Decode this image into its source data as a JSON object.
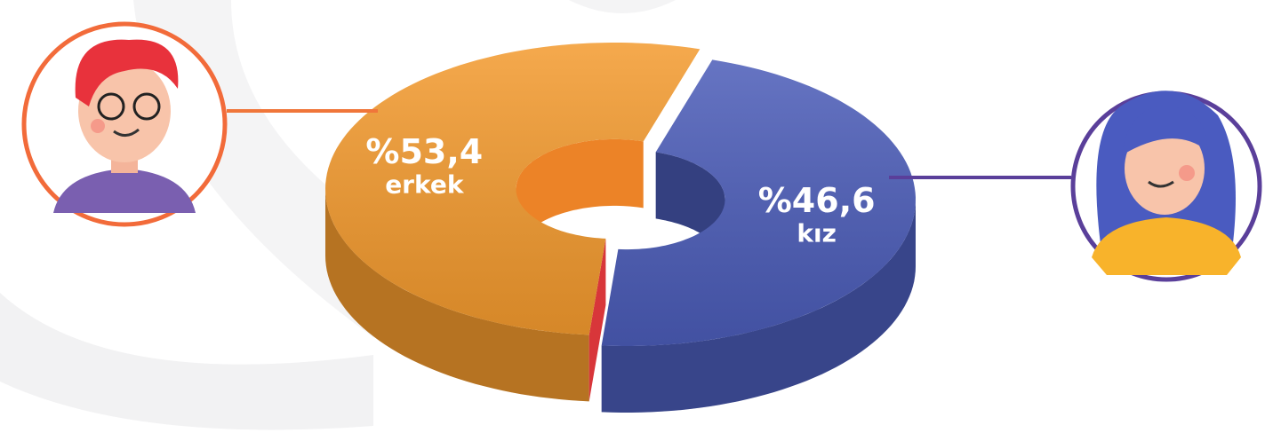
{
  "chart_data": {
    "type": "pie",
    "donut": true,
    "categories": [
      "erkek",
      "kız"
    ],
    "values": [
      53.4,
      46.6
    ],
    "value_labels": [
      "%53,4",
      "%46,6"
    ],
    "colors": [
      "#f39a2e",
      "#4b5cb8"
    ]
  }
}
